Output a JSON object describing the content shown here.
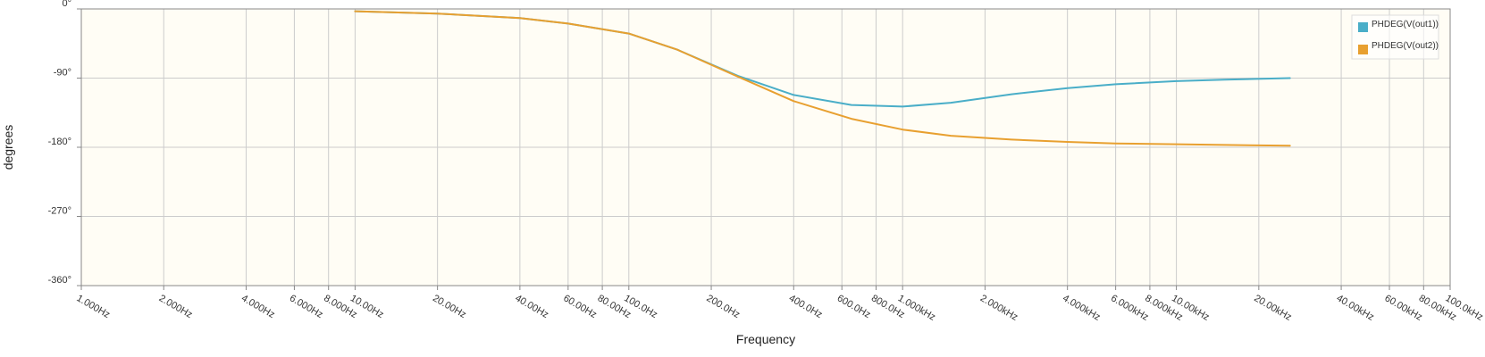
{
  "chart_data": {
    "type": "line",
    "xscale": "log",
    "xlim": [
      1,
      100000
    ],
    "ylim": [
      -360,
      0
    ],
    "grid": true,
    "legend_position": "top-right",
    "xlabel": "Frequency",
    "ylabel": "degrees",
    "colors": {
      "plot_background": "#fffdf5",
      "grid": "#cccccc",
      "axis": "#888888"
    },
    "x_ticks": [
      {
        "value": 1,
        "label": "1.000Hz"
      },
      {
        "value": 2,
        "label": "2.000Hz"
      },
      {
        "value": 4,
        "label": "4.000Hz"
      },
      {
        "value": 6,
        "label": "6.000Hz"
      },
      {
        "value": 8,
        "label": "8.000Hz"
      },
      {
        "value": 10,
        "label": "10.00Hz"
      },
      {
        "value": 20,
        "label": "20.00Hz"
      },
      {
        "value": 40,
        "label": "40.00Hz"
      },
      {
        "value": 60,
        "label": "60.00Hz"
      },
      {
        "value": 80,
        "label": "80.00Hz"
      },
      {
        "value": 100,
        "label": "100.0Hz"
      },
      {
        "value": 200,
        "label": "200.0Hz"
      },
      {
        "value": 400,
        "label": "400.0Hz"
      },
      {
        "value": 600,
        "label": "600.0Hz"
      },
      {
        "value": 800,
        "label": "800.0Hz"
      },
      {
        "value": 1000,
        "label": "1.000kHz"
      },
      {
        "value": 2000,
        "label": "2.000kHz"
      },
      {
        "value": 4000,
        "label": "4.000kHz"
      },
      {
        "value": 6000,
        "label": "6.000kHz"
      },
      {
        "value": 8000,
        "label": "8.000kHz"
      },
      {
        "value": 10000,
        "label": "10.00kHz"
      },
      {
        "value": 20000,
        "label": "20.00kHz"
      },
      {
        "value": 40000,
        "label": "40.00kHz"
      },
      {
        "value": 60000,
        "label": "60.00kHz"
      },
      {
        "value": 80000,
        "label": "80.00kHz"
      },
      {
        "value": 100000,
        "label": "100.0kHz"
      }
    ],
    "y_ticks": [
      {
        "value": 0,
        "label": "0°"
      },
      {
        "value": -90,
        "label": "-90°"
      },
      {
        "value": -180,
        "label": "-180°"
      },
      {
        "value": -270,
        "label": "-270°"
      },
      {
        "value": -360,
        "label": "-360°"
      }
    ],
    "series": [
      {
        "name": "PHDEG(V(out1))",
        "color": "#4aaec8",
        "x": [
          10,
          20,
          40,
          60,
          100,
          150,
          250,
          400,
          650,
          1000,
          1500,
          2500,
          4000,
          6000,
          10000,
          15000,
          26000
        ],
        "y": [
          -3,
          -6,
          -12,
          -19,
          -32,
          -53,
          -87,
          -112,
          -125,
          -127,
          -122,
          -111,
          -103,
          -98,
          -94,
          -92,
          -90
        ]
      },
      {
        "name": "PHDEG(V(out2))",
        "color": "#e8a030",
        "x": [
          10,
          20,
          40,
          60,
          100,
          150,
          250,
          400,
          650,
          1000,
          1500,
          2500,
          4000,
          6000,
          10000,
          15000,
          26000
        ],
        "y": [
          -3,
          -6,
          -12,
          -19,
          -32,
          -53,
          -88,
          -120,
          -143,
          -157,
          -165,
          -170,
          -173,
          -175,
          -176,
          -177,
          -178
        ]
      }
    ]
  }
}
